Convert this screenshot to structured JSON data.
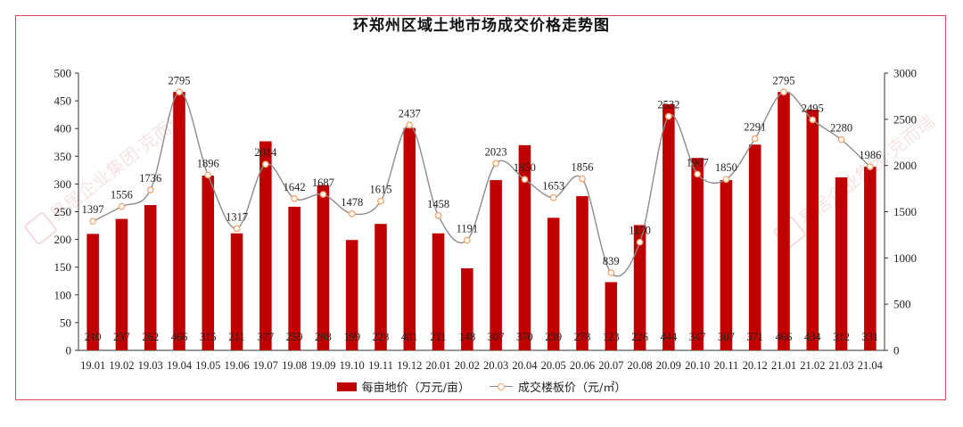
{
  "chart_data": {
    "type": "bar+line",
    "title": "环郑州区域土地市场成交价格走势图",
    "categories": [
      "19.01",
      "19.02",
      "19.03",
      "19.04",
      "19.05",
      "19.06",
      "19.07",
      "19.08",
      "19.09",
      "19.10",
      "19.11",
      "19.12",
      "20.01",
      "20.02",
      "20.03",
      "20.04",
      "20.05",
      "20.06",
      "20.07",
      "20.08",
      "20.09",
      "20.10",
      "20.11",
      "20.12",
      "21.01",
      "21.02",
      "21.03",
      "21.04"
    ],
    "series": [
      {
        "name": "每亩地价（万元/亩）",
        "type": "bar",
        "axis": "left",
        "color": "#c00000",
        "values": [
          210,
          237,
          262,
          466,
          315,
          211,
          377,
          259,
          298,
          199,
          228,
          401,
          211,
          148,
          307,
          370,
          239,
          278,
          123,
          226,
          444,
          347,
          307,
          371,
          466,
          434,
          312,
          331
        ]
      },
      {
        "name": "成交楼板价（元/㎡）",
        "type": "line",
        "axis": "right",
        "color": "#8c8c8c",
        "marker_color": "#f4a46a",
        "values": [
          1397,
          1556,
          1736,
          2795,
          1896,
          1317,
          2014,
          1642,
          1687,
          1478,
          1615,
          2437,
          1458,
          1191,
          2023,
          1850,
          1653,
          1856,
          839,
          1170,
          2532,
          1907,
          1850,
          2291,
          2795,
          2495,
          2280,
          1986
        ]
      }
    ],
    "y_left": {
      "ylim": [
        0,
        500
      ],
      "ticks": [
        0,
        50,
        100,
        150,
        200,
        250,
        300,
        350,
        400,
        450,
        500
      ]
    },
    "y_right": {
      "ylim": [
        0,
        3000
      ],
      "ticks": [
        0,
        500,
        1000,
        1500,
        2000,
        2500,
        3000
      ]
    },
    "legend_position": "bottom",
    "grid": false
  },
  "watermark": {
    "text": "易居企业集团·克而瑞",
    "logo": "易居"
  }
}
